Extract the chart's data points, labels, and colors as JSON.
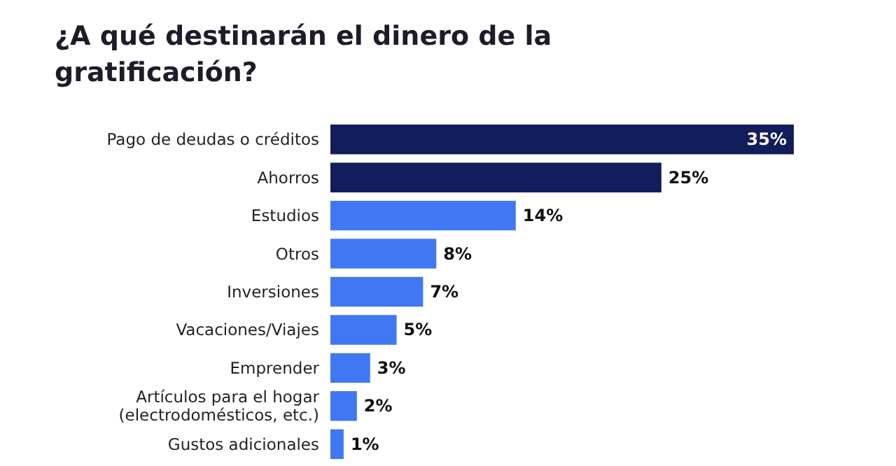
{
  "chart_data": {
    "type": "bar",
    "orientation": "horizontal",
    "title": "¿A qué destinarán el dinero de la\ngratificación?",
    "categories": [
      "Pago de deudas o créditos",
      "Ahorros",
      "Estudios",
      "Otros",
      "Inversiones",
      "Vacaciones/Viajes",
      "Emprender",
      "Artículos para el hogar\n(electrodomésticos, etc.)",
      "Gustos adicionales"
    ],
    "values": [
      35,
      25,
      14,
      8,
      7,
      5,
      3,
      2,
      1
    ],
    "colors": [
      "#121d5c",
      "#121d5c",
      "#3f78f2",
      "#3f78f2",
      "#3f78f2",
      "#3f78f2",
      "#3f78f2",
      "#3f78f2",
      "#3f78f2"
    ],
    "value_labels": [
      "35%",
      "25%",
      "14%",
      "8%",
      "7%",
      "5%",
      "3%",
      "2%",
      "1%"
    ]
  }
}
